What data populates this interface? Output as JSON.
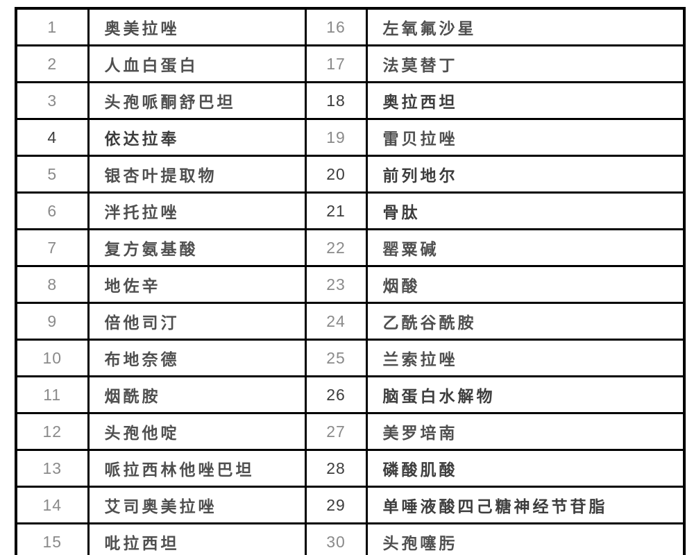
{
  "table": {
    "name": "numbered-drug-list",
    "columns": [
      "index_left",
      "drug_name_left",
      "index_right",
      "drug_name_right"
    ],
    "rows": [
      {
        "left_no": "1",
        "left_name": "奥美拉唑",
        "left_hl": false,
        "right_no": "16",
        "right_name": "左氧氟沙星",
        "right_hl": false
      },
      {
        "left_no": "2",
        "left_name": "人血白蛋白",
        "left_hl": false,
        "right_no": "17",
        "right_name": "法莫替丁",
        "right_hl": false
      },
      {
        "left_no": "3",
        "left_name": "头孢哌酮舒巴坦",
        "left_hl": false,
        "right_no": "18",
        "right_name": "奥拉西坦",
        "right_hl": true
      },
      {
        "left_no": "4",
        "left_name": "依达拉奉",
        "left_hl": true,
        "right_no": "19",
        "right_name": "雷贝拉唑",
        "right_hl": false
      },
      {
        "left_no": "5",
        "left_name": "银杏叶提取物",
        "left_hl": false,
        "right_no": "20",
        "right_name": "前列地尔",
        "right_hl": true
      },
      {
        "left_no": "6",
        "left_name": "泮托拉唑",
        "left_hl": false,
        "right_no": "21",
        "right_name": "骨肽",
        "right_hl": true
      },
      {
        "left_no": "7",
        "left_name": "复方氨基酸",
        "left_hl": false,
        "right_no": "22",
        "right_name": "罂粟碱",
        "right_hl": false
      },
      {
        "left_no": "8",
        "left_name": "地佐辛",
        "left_hl": false,
        "right_no": "23",
        "right_name": "烟酸",
        "right_hl": false
      },
      {
        "left_no": "9",
        "left_name": "倍他司汀",
        "left_hl": false,
        "right_no": "24",
        "right_name": "乙酰谷酰胺",
        "right_hl": false
      },
      {
        "left_no": "10",
        "left_name": "布地奈德",
        "left_hl": false,
        "right_no": "25",
        "right_name": "兰索拉唑",
        "right_hl": false
      },
      {
        "left_no": "11",
        "left_name": "烟酰胺",
        "left_hl": false,
        "right_no": "26",
        "right_name": "脑蛋白水解物",
        "right_hl": true
      },
      {
        "left_no": "12",
        "left_name": "头孢他啶",
        "left_hl": false,
        "right_no": "27",
        "right_name": "美罗培南",
        "right_hl": false
      },
      {
        "left_no": "13",
        "left_name": "哌拉西林他唑巴坦",
        "left_hl": false,
        "right_no": "28",
        "right_name": "磷酸肌酸",
        "right_hl": true
      },
      {
        "left_no": "14",
        "left_name": "艾司奥美拉唑",
        "left_hl": false,
        "right_no": "29",
        "right_name": "单唾液酸四己糖神经节苷脂",
        "right_hl": true
      },
      {
        "left_no": "15",
        "left_name": "吡拉西坦",
        "left_hl": false,
        "right_no": "30",
        "right_name": "头孢噻肟",
        "right_hl": false
      }
    ]
  },
  "colors": {
    "highlight": "#ffff00",
    "border": "#000000",
    "number_text": "#8a8a8a",
    "name_text": "#4f4f4f",
    "background": "#ffffff"
  }
}
